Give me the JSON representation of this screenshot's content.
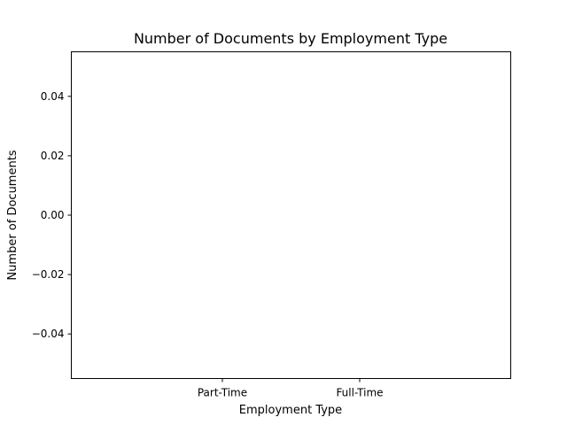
{
  "chart_data": {
    "type": "bar",
    "title": "Number of Documents by Employment Type",
    "xlabel": "Employment Type",
    "ylabel": "Number of Documents",
    "categories": [
      "Part-Time",
      "Full-Time"
    ],
    "values": [
      0,
      0
    ],
    "ylim": [
      -0.055,
      0.055
    ],
    "yticks": [
      -0.04,
      -0.02,
      0.0,
      0.02,
      0.04
    ],
    "ytick_labels": [
      "−0.04",
      "−0.02",
      "0.00",
      "0.02",
      "0.04"
    ],
    "grid": false,
    "legend": "none",
    "colors": {
      "axes": "#000000",
      "bar": "#1f77b4",
      "background": "#ffffff"
    }
  }
}
